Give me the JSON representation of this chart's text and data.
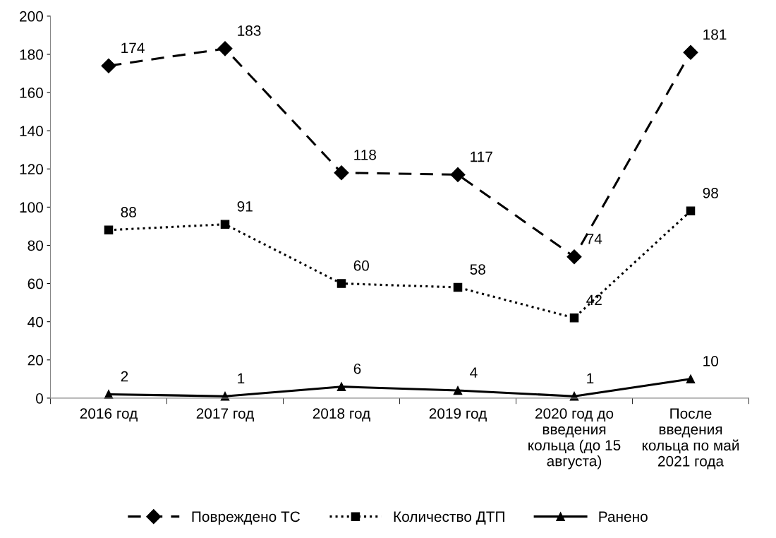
{
  "chart_data": {
    "type": "line",
    "categories": [
      "2016 год",
      "2017 год",
      "2018 год",
      "2019 год",
      "2020 год до\nвведения\nкольца (до 15\nавгуста)",
      "После\nвведения\nкольца по май\n2021 года"
    ],
    "series": [
      {
        "name": "Повреждено ТС",
        "color": "#000000",
        "values": [
          174,
          183,
          118,
          117,
          74,
          181
        ],
        "marker": "diamond",
        "line_style": "dashed"
      },
      {
        "name": "Количество ДТП",
        "color": "#000000",
        "values": [
          88,
          91,
          60,
          58,
          42,
          98
        ],
        "marker": "square",
        "line_style": "dotted"
      },
      {
        "name": "Ранено",
        "color": "#000000",
        "values": [
          2,
          1,
          6,
          4,
          1,
          10
        ],
        "marker": "triangle",
        "line_style": "solid"
      }
    ],
    "ylim": [
      0,
      200
    ],
    "yticks": [
      0,
      20,
      40,
      60,
      80,
      100,
      120,
      140,
      160,
      180,
      200
    ],
    "grid": false,
    "legend": "bottom",
    "data_labels": true
  }
}
